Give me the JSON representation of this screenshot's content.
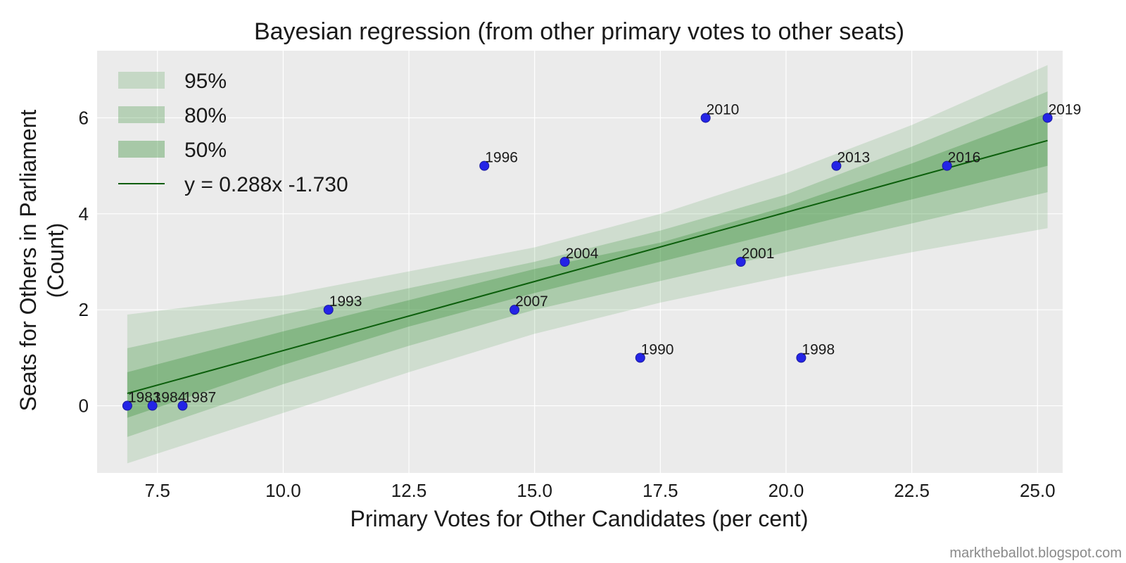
{
  "chart_data": {
    "type": "scatter",
    "title": "Bayesian regression (from other primary votes to other seats)",
    "xlabel": "Primary Votes for Other Candidates (per cent)",
    "ylabel_lines": [
      "Seats for Others in Parliament",
      "(Count)"
    ],
    "xlim": [
      6.3,
      25.5
    ],
    "ylim": [
      -1.4,
      7.4
    ],
    "xticks": [
      7.5,
      10.0,
      12.5,
      15.0,
      17.5,
      20.0,
      22.5,
      25.0
    ],
    "xtick_labels": [
      "7.5",
      "10.0",
      "12.5",
      "15.0",
      "17.5",
      "20.0",
      "22.5",
      "25.0"
    ],
    "yticks": [
      0,
      2,
      4,
      6
    ],
    "ytick_labels": [
      "0",
      "2",
      "4",
      "6"
    ],
    "grid": true,
    "legend_position": "top-left",
    "points": [
      {
        "label": "1983",
        "x": 6.9,
        "y": 0
      },
      {
        "label": "1984",
        "x": 7.4,
        "y": 0
      },
      {
        "label": "1987",
        "x": 8.0,
        "y": 0
      },
      {
        "label": "1990",
        "x": 17.1,
        "y": 1
      },
      {
        "label": "1993",
        "x": 10.9,
        "y": 2
      },
      {
        "label": "1996",
        "x": 14.0,
        "y": 5
      },
      {
        "label": "1998",
        "x": 20.3,
        "y": 1
      },
      {
        "label": "2001",
        "x": 19.1,
        "y": 3
      },
      {
        "label": "2004",
        "x": 15.6,
        "y": 3
      },
      {
        "label": "2007",
        "x": 14.6,
        "y": 2
      },
      {
        "label": "2010",
        "x": 18.4,
        "y": 6
      },
      {
        "label": "2013",
        "x": 21.0,
        "y": 5
      },
      {
        "label": "2016",
        "x": 23.2,
        "y": 5
      },
      {
        "label": "2019",
        "x": 25.2,
        "y": 6
      }
    ],
    "fit": {
      "slope": 0.288,
      "intercept": -1.73,
      "x_range": [
        6.9,
        25.2
      ]
    },
    "bands": [
      {
        "name": "95%",
        "x": [
          6.9,
          10.0,
          12.5,
          15.0,
          17.5,
          20.0,
          22.5,
          25.2
        ],
        "lower": [
          -1.2,
          -0.15,
          0.7,
          1.5,
          2.15,
          2.7,
          3.2,
          3.7
        ],
        "upper": [
          1.9,
          2.3,
          2.8,
          3.3,
          4.0,
          4.85,
          5.85,
          7.1
        ]
      },
      {
        "name": "80%",
        "x": [
          6.9,
          10.0,
          12.5,
          15.0,
          17.5,
          20.0,
          22.5,
          25.2
        ],
        "lower": [
          -0.65,
          0.45,
          1.25,
          2.0,
          2.6,
          3.2,
          3.8,
          4.45
        ],
        "upper": [
          1.2,
          1.9,
          2.45,
          3.0,
          3.65,
          4.4,
          5.4,
          6.55
        ]
      },
      {
        "name": "50%",
        "x": [
          6.9,
          10.0,
          12.5,
          15.0,
          17.5,
          20.0,
          22.5,
          25.2
        ],
        "lower": [
          -0.25,
          0.85,
          1.65,
          2.35,
          3.0,
          3.65,
          4.3,
          5.0
        ],
        "upper": [
          0.7,
          1.55,
          2.2,
          2.85,
          3.4,
          4.15,
          5.05,
          6.1
        ]
      }
    ],
    "legend": [
      {
        "label": "95%",
        "kind": "band",
        "band": 0
      },
      {
        "label": "80%",
        "kind": "band",
        "band": 1
      },
      {
        "label": "50%",
        "kind": "band",
        "band": 2
      },
      {
        "label": "y = 0.288x  -1.730",
        "kind": "line"
      }
    ],
    "colors": {
      "plot_background": "#ebebeb",
      "grid": "#ffffff",
      "band": "#2e8b2e",
      "fit_line": "#0b5e0b",
      "point": "#2424e6",
      "point_edge": "#1a1aa0"
    },
    "credit": "marktheballot.blogspot.com"
  }
}
